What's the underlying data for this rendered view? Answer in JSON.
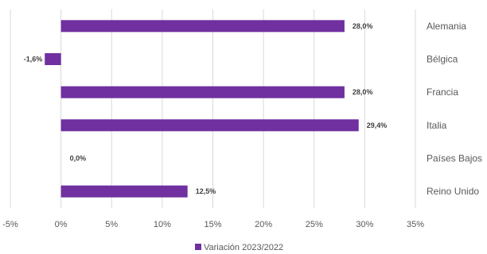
{
  "chart_data": {
    "type": "bar",
    "orientation": "horizontal",
    "categories": [
      "Alemania",
      "Bélgica",
      "Francia",
      "Italia",
      "Países Bajos",
      "Reino Unido"
    ],
    "series": [
      {
        "name": "Variación 2023/2022",
        "values": [
          28.0,
          -1.6,
          28.0,
          29.4,
          0.0,
          12.5
        ],
        "labels": [
          "28,0%",
          "-1,6%",
          "28,0%",
          "29,4%",
          "0,0%",
          "12,5%"
        ]
      }
    ],
    "xlim": [
      -5,
      35
    ],
    "x_ticks": [
      -5,
      0,
      5,
      10,
      15,
      20,
      25,
      30,
      35
    ],
    "x_tick_labels": [
      "-5%",
      "0%",
      "5%",
      "10%",
      "15%",
      "20%",
      "25%",
      "30%",
      "35%"
    ],
    "grid": "vertical",
    "legend": "bottom",
    "color": "#7030A0"
  }
}
